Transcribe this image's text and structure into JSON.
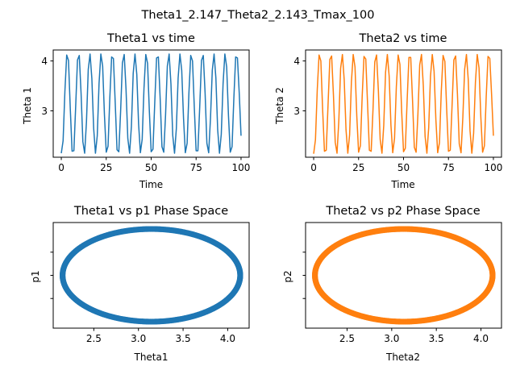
{
  "suptitle": "Theta1_2.147_Theta2_2.143_Tmax_100",
  "colors": {
    "theta1": "#1f77b4",
    "theta2": "#ff7f0e"
  },
  "chart_data": [
    {
      "type": "line",
      "title": "Theta1 vs time",
      "xlabel": "Time",
      "ylabel": "Theta 1",
      "xlim": [
        -4.5,
        104.5
      ],
      "ylim": [
        2.07,
        4.22
      ],
      "xticks": [
        0,
        25,
        50,
        75,
        100
      ],
      "xtick_labels": [
        "0",
        "25",
        "50",
        "75",
        "100"
      ],
      "yticks": [
        3,
        4
      ],
      "ytick_labels": [
        "3",
        "4"
      ],
      "grid": false,
      "color": "#1f77b4",
      "series": [
        {
          "x": [
            0,
            1,
            2,
            3,
            4,
            5,
            6,
            7,
            8,
            9,
            10,
            11,
            12,
            13,
            14,
            15,
            16,
            17,
            18,
            19,
            20,
            21,
            22,
            23,
            24,
            25,
            26,
            27,
            28,
            29,
            30,
            31,
            32,
            33,
            34,
            35,
            36,
            37,
            38,
            39,
            40,
            41,
            42,
            43,
            44,
            45,
            46,
            47,
            48,
            49,
            50,
            51,
            52,
            53,
            54,
            55,
            56,
            57,
            58,
            59,
            60,
            61,
            62,
            63,
            64,
            65,
            66,
            67,
            68,
            69,
            70,
            71,
            72,
            73,
            74,
            75,
            76,
            77,
            78,
            79,
            80,
            81,
            82,
            83,
            84,
            85,
            86,
            87,
            88,
            89,
            90,
            91,
            92,
            93,
            94,
            95,
            96,
            97,
            98,
            99,
            100
          ],
          "values": [
            2.15,
            2.4,
            3.39,
            4.12,
            4.01,
            3.04,
            2.19,
            2.2,
            3.09,
            4.02,
            4.11,
            3.35,
            2.38,
            2.15,
            2.78,
            3.83,
            4.14,
            3.65,
            2.65,
            2.15,
            2.5,
            3.55,
            4.14,
            3.9,
            2.92,
            2.17,
            2.29,
            3.26,
            4.08,
            4.05,
            3.16,
            2.22,
            2.18,
            2.99,
            3.96,
            4.13,
            3.44,
            2.45,
            2.15,
            2.69,
            3.75,
            4.14,
            3.73,
            2.74,
            2.16,
            2.43,
            3.45,
            4.13,
            3.95,
            2.98,
            2.18,
            2.23,
            3.17,
            4.06,
            4.08,
            3.25,
            2.28,
            2.17,
            2.91,
            3.9,
            4.14,
            3.54,
            2.51,
            2.15,
            2.64,
            3.66,
            4.14,
            3.81,
            2.85,
            2.16,
            2.35,
            3.36,
            4.11,
            4.0,
            3.07,
            2.2,
            2.2,
            3.07,
            4.01,
            4.11,
            3.36,
            2.35,
            2.16,
            2.85,
            3.81,
            4.14,
            3.66,
            2.62,
            2.15,
            2.53,
            3.54,
            4.14,
            3.88,
            2.91,
            2.17,
            2.28,
            3.25,
            4.08,
            4.06,
            3.35,
            2.5
          ]
        }
      ]
    },
    {
      "type": "line",
      "title": "Theta2 vs time",
      "xlabel": "Time",
      "ylabel": "Theta 2",
      "xlim": [
        -4.5,
        104.5
      ],
      "ylim": [
        2.07,
        4.22
      ],
      "xticks": [
        0,
        25,
        50,
        75,
        100
      ],
      "xtick_labels": [
        "0",
        "25",
        "50",
        "75",
        "100"
      ],
      "yticks": [
        3,
        4
      ],
      "ytick_labels": [
        "3",
        "4"
      ],
      "grid": false,
      "color": "#ff7f0e",
      "series": [
        {
          "x": [
            0,
            1,
            2,
            3,
            4,
            5,
            6,
            7,
            8,
            9,
            10,
            11,
            12,
            13,
            14,
            15,
            16,
            17,
            18,
            19,
            20,
            21,
            22,
            23,
            24,
            25,
            26,
            27,
            28,
            29,
            30,
            31,
            32,
            33,
            34,
            35,
            36,
            37,
            38,
            39,
            40,
            41,
            42,
            43,
            44,
            45,
            46,
            47,
            48,
            49,
            50,
            51,
            52,
            53,
            54,
            55,
            56,
            57,
            58,
            59,
            60,
            61,
            62,
            63,
            64,
            65,
            66,
            67,
            68,
            69,
            70,
            71,
            72,
            73,
            74,
            75,
            76,
            77,
            78,
            79,
            80,
            81,
            82,
            83,
            84,
            85,
            86,
            87,
            88,
            89,
            90,
            91,
            92,
            93,
            94,
            95,
            96,
            97,
            98,
            99,
            100
          ],
          "values": [
            2.14,
            2.42,
            3.42,
            4.12,
            4.0,
            3.02,
            2.19,
            2.21,
            3.12,
            4.03,
            4.1,
            3.32,
            2.37,
            2.15,
            2.8,
            3.85,
            4.13,
            3.62,
            2.62,
            2.15,
            2.52,
            3.58,
            4.13,
            3.88,
            2.89,
            2.17,
            2.3,
            3.29,
            4.09,
            4.04,
            3.13,
            2.21,
            2.19,
            3.01,
            3.98,
            4.12,
            3.41,
            2.43,
            2.15,
            2.71,
            3.77,
            4.13,
            3.7,
            2.71,
            2.16,
            2.45,
            3.48,
            4.12,
            3.93,
            2.96,
            2.18,
            2.25,
            3.2,
            4.07,
            4.07,
            3.22,
            2.27,
            2.17,
            2.93,
            3.92,
            4.13,
            3.51,
            2.49,
            2.15,
            2.66,
            3.69,
            4.13,
            3.79,
            2.82,
            2.16,
            2.36,
            3.39,
            4.11,
            3.99,
            3.04,
            2.19,
            2.21,
            3.1,
            4.02,
            4.1,
            3.33,
            2.34,
            2.16,
            2.87,
            3.83,
            4.13,
            3.63,
            2.6,
            2.15,
            2.55,
            3.57,
            4.13,
            3.86,
            2.88,
            2.17,
            2.3,
            3.28,
            4.09,
            4.05,
            3.32,
            2.5
          ]
        }
      ]
    },
    {
      "type": "scatter",
      "title": "Theta1 vs p1 Phase Space",
      "xlabel": "Theta1",
      "ylabel": "p1",
      "xlim": [
        2.045,
        4.24
      ],
      "ylim": [
        -1.14,
        1.14
      ],
      "xticks": [
        2.5,
        3.0,
        3.5,
        4.0
      ],
      "xtick_labels": [
        "2.5",
        "3.0",
        "3.5",
        "4.0"
      ],
      "yticks": [
        -0.5,
        0,
        0.5
      ],
      "ytick_labels": [
        "",
        "",
        ""
      ],
      "grid": false,
      "color": "#1f77b4",
      "orbit": {
        "theta_min": 2.15,
        "theta_max": 4.14,
        "p_min": -1.0,
        "p_max": 1.0,
        "points": 420
      }
    },
    {
      "type": "scatter",
      "title": "Theta2 vs p2 Phase Space",
      "xlabel": "Theta2",
      "ylabel": "p2",
      "xlim": [
        2.035,
        4.23
      ],
      "ylim": [
        -1.14,
        1.14
      ],
      "xticks": [
        2.5,
        3.0,
        3.5,
        4.0
      ],
      "xtick_labels": [
        "2.5",
        "3.0",
        "3.5",
        "4.0"
      ],
      "yticks": [
        -0.5,
        0,
        0.5
      ],
      "ytick_labels": [
        "",
        "",
        ""
      ],
      "grid": false,
      "color": "#ff7f0e",
      "orbit": {
        "theta_min": 2.14,
        "theta_max": 4.13,
        "p_min": -1.0,
        "p_max": 1.0,
        "points": 420
      }
    }
  ]
}
